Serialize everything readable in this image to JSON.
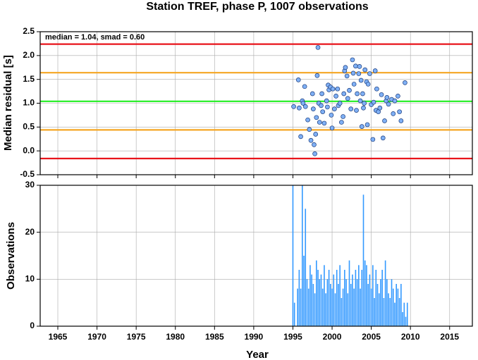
{
  "chart_data": [
    {
      "type": "scatter",
      "title": "Station TREF, phase P, 1007 observations",
      "ylabel": "Median residual [s]",
      "annotation": "median = 1.04, smad = 0.60",
      "xlim": [
        1962.75,
        2017.9
      ],
      "xticks": [
        1965,
        1970,
        1975,
        1980,
        1985,
        1990,
        1995,
        2000,
        2005,
        2010,
        2015
      ],
      "ylim": [
        -0.5,
        2.5
      ],
      "yticks": [
        {
          "value": 2.5,
          "label": "2.5"
        },
        {
          "value": 2,
          "label": "2.0"
        },
        1.5,
        {
          "value": 1,
          "label": "1.0"
        },
        0.5,
        {
          "value": 0,
          "label": "0.0"
        },
        -0.5
      ],
      "grid": true,
      "reference_lines": [
        {
          "value": 2.24,
          "color": "#e8141b"
        },
        {
          "value": 1.64,
          "color": "#f5a623"
        },
        {
          "value": 1.04,
          "color": "#22ee22"
        },
        {
          "value": 0.44,
          "color": "#f5a623"
        },
        {
          "value": -0.16,
          "color": "#e8141b"
        }
      ],
      "series": [
        {
          "color": "#7fb0f5",
          "x": [
            1995.1,
            1995.7,
            1995.8,
            1996.0,
            1996.2,
            1996.3,
            1996.5,
            1996.6,
            1996.9,
            1997.1,
            1997.3,
            1997.5,
            1997.6,
            1997.7,
            1997.8,
            1997.9,
            1998.0,
            1998.1,
            1998.2,
            1998.3,
            1998.4,
            1998.6,
            1998.7,
            1998.8,
            1999.0,
            1999.3,
            1999.4,
            1999.5,
            1999.6,
            1999.8,
            1999.9,
            2000.0,
            2000.1,
            2000.3,
            2000.5,
            2000.7,
            2000.8,
            2001.0,
            2001.2,
            2001.4,
            2001.5,
            2001.6,
            2001.7,
            2001.9,
            2002.0,
            2002.2,
            2002.4,
            2002.6,
            2002.7,
            2002.8,
            2003.0,
            2003.1,
            2003.2,
            2003.4,
            2003.5,
            2003.6,
            2003.7,
            2003.8,
            2003.9,
            2004.0,
            2004.1,
            2004.2,
            2004.4,
            2004.5,
            2004.6,
            2004.8,
            2005.0,
            2005.2,
            2005.3,
            2005.5,
            2005.6,
            2005.7,
            2005.9,
            2006.1,
            2006.3,
            2006.5,
            2006.7,
            2006.9,
            2007.0,
            2007.2,
            2007.6,
            2007.8,
            2008.0,
            2008.4,
            2008.6,
            2008.8,
            2009.3
          ],
          "values": [
            0.93,
            1.49,
            0.9,
            0.3,
            1.05,
            1.0,
            1.35,
            0.93,
            0.65,
            0.45,
            0.22,
            1.2,
            0.88,
            0.13,
            -0.06,
            0.35,
            0.7,
            1.58,
            2.17,
            1.0,
            0.6,
            0.95,
            1.2,
            0.82,
            0.58,
            1.05,
            0.92,
            1.38,
            1.28,
            1.34,
            0.75,
            0.48,
            1.3,
            0.88,
            1.15,
            1.3,
            0.95,
            1.0,
            0.6,
            0.72,
            1.2,
            1.68,
            1.75,
            1.57,
            1.1,
            1.27,
            0.88,
            1.91,
            1.63,
            1.4,
            1.78,
            0.85,
            1.2,
            1.62,
            1.77,
            1.05,
            1.48,
            0.51,
            1.2,
            0.9,
            1.0,
            1.7,
            1.45,
            0.55,
            1.4,
            1.62,
            0.97,
            0.24,
            1.02,
            1.68,
            0.85,
            1.3,
            0.82,
            0.9,
            1.18,
            0.27,
            0.63,
            1.05,
            1.12,
            0.98,
            1.08,
            0.78,
            1.05,
            1.15,
            0.82,
            0.63,
            1.43
          ]
        }
      ]
    },
    {
      "type": "bar",
      "xlabel": "Year",
      "ylabel": "Observations",
      "xlim": [
        1962.75,
        2017.9
      ],
      "xticks": [
        1965,
        1970,
        1975,
        1980,
        1985,
        1990,
        1995,
        2000,
        2005,
        2010,
        2015
      ],
      "ylim": [
        0,
        30
      ],
      "yticks": [
        30,
        20,
        10,
        0
      ],
      "grid": true,
      "color": "#3399ff",
      "x": [
        1995.0,
        1995.2,
        1995.4,
        1995.6,
        1995.8,
        1996.0,
        1996.2,
        1996.4,
        1996.6,
        1996.8,
        1997.0,
        1997.2,
        1997.4,
        1997.6,
        1997.8,
        1998.0,
        1998.2,
        1998.4,
        1998.6,
        1998.8,
        1999.0,
        1999.2,
        1999.4,
        1999.6,
        1999.8,
        2000.0,
        2000.2,
        2000.4,
        2000.6,
        2000.8,
        2001.0,
        2001.2,
        2001.4,
        2001.6,
        2001.8,
        2002.0,
        2002.2,
        2002.4,
        2002.6,
        2002.8,
        2003.0,
        2003.2,
        2003.4,
        2003.6,
        2003.8,
        2004.0,
        2004.2,
        2004.4,
        2004.6,
        2004.8,
        2005.0,
        2005.2,
        2005.4,
        2005.6,
        2005.8,
        2006.0,
        2006.2,
        2006.4,
        2006.6,
        2006.8,
        2007.0,
        2007.2,
        2007.4,
        2007.6,
        2007.8,
        2008.0,
        2008.2,
        2008.4,
        2008.6,
        2008.8,
        2009.0,
        2009.2,
        2009.4,
        2009.6
      ],
      "values": [
        30,
        5,
        0,
        8,
        12,
        8,
        30,
        15,
        25,
        10,
        8,
        13,
        11,
        9,
        7,
        14,
        12,
        10,
        11,
        8,
        13,
        7,
        10,
        12,
        9,
        8,
        11,
        7,
        12,
        9,
        13,
        6,
        8,
        12,
        10,
        7,
        14,
        9,
        11,
        8,
        12,
        10,
        13,
        8,
        12,
        28,
        14,
        13,
        9,
        11,
        8,
        13,
        6,
        12,
        9,
        7,
        10,
        12,
        6,
        14,
        10,
        7,
        6,
        10,
        8,
        5,
        9,
        8,
        6,
        9,
        3,
        5,
        2,
        5
      ]
    }
  ]
}
